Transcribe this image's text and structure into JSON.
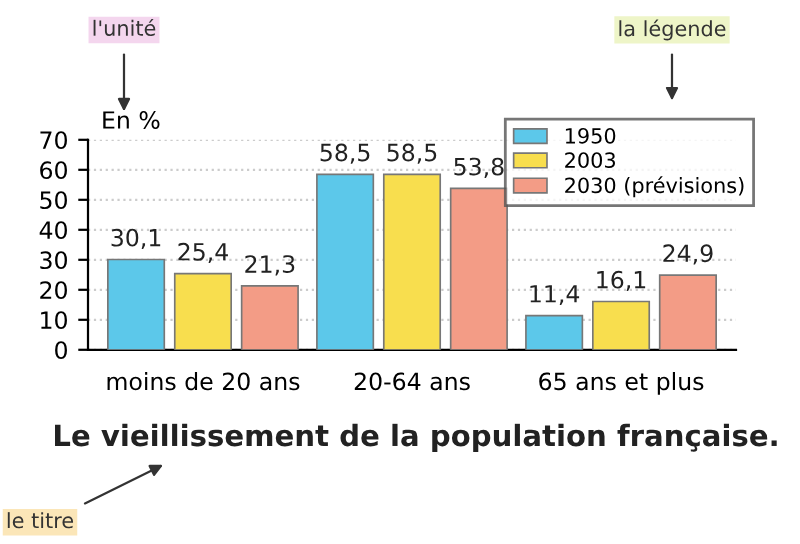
{
  "chart_data": {
    "type": "bar",
    "title": "Le vieillissement de la population française.",
    "ylabel": "En %",
    "categories": [
      "moins de 20 ans",
      "20-64 ans",
      "65 ans et plus"
    ],
    "series": [
      {
        "name": "1950",
        "color": "#5cc8ea",
        "values": [
          30.1,
          58.5,
          11.4
        ],
        "value_labels": [
          "30,1",
          "58,5",
          "11,4"
        ]
      },
      {
        "name": "2003",
        "color": "#f8de4e",
        "values": [
          25.4,
          58.5,
          16.1
        ],
        "value_labels": [
          "25,4",
          "58,5",
          "16,1"
        ]
      },
      {
        "name": "2030 (prévisions)",
        "color": "#f39c86",
        "values": [
          21.3,
          53.8,
          24.9
        ],
        "value_labels": [
          "21,3",
          "53,8",
          "24,9"
        ]
      }
    ],
    "ylim": [
      0,
      70
    ],
    "yticks": [
      0,
      10,
      20,
      30,
      40,
      50,
      60,
      70
    ],
    "grid": "y",
    "legend": "top right",
    "annotations": [
      "l'unité",
      "la légende",
      "le titre"
    ]
  }
}
